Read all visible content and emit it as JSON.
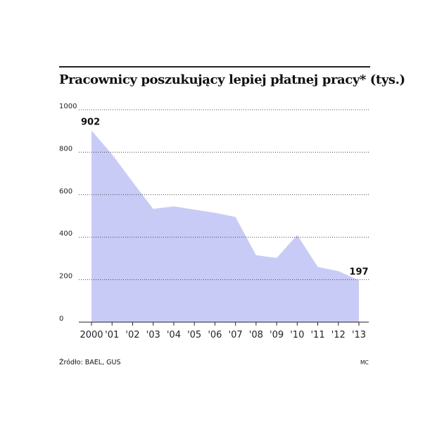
{
  "chart_data": {
    "type": "area",
    "title": "Pracownicy poszukujący lepiej płatnej pracy* (tys.)",
    "x_labels": [
      "2000",
      "'01",
      "'02",
      "'03",
      "'04",
      "'05",
      "'06",
      "'07",
      "'08",
      "'09",
      "'10",
      "'11",
      "'12",
      "'13"
    ],
    "values": [
      902,
      790,
      660,
      533,
      545,
      530,
      515,
      495,
      315,
      302,
      410,
      260,
      240,
      197
    ],
    "y_ticks": [
      0,
      200,
      400,
      600,
      800,
      1000
    ],
    "ylim": [
      0,
      1000
    ],
    "grid": "dotted-horizontal",
    "annotations": [
      {
        "index": 0,
        "text": "902"
      },
      {
        "index": 13,
        "text": "197"
      }
    ],
    "fill_color": "#c9cbf7"
  },
  "footer": {
    "source": "Źródło: BAEL, GUS",
    "credit": "MC"
  }
}
